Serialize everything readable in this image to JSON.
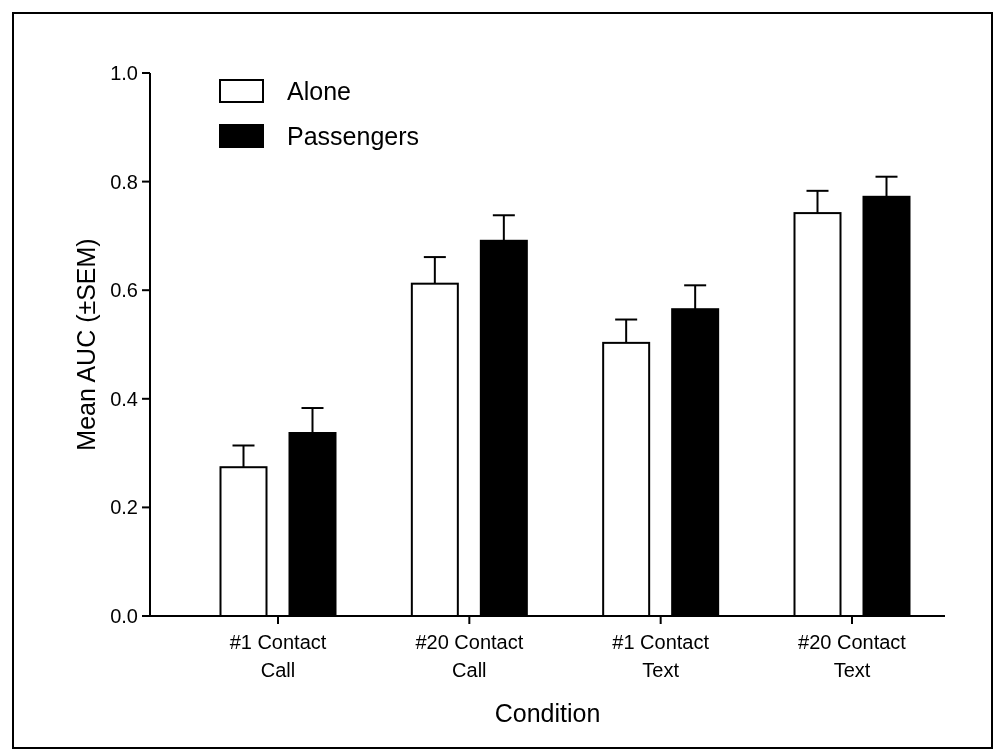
{
  "chart_data": {
    "type": "bar",
    "xlabel": "Condition",
    "ylabel": "Mean AUC (±SEM)",
    "categories": [
      "#1 Contact Call",
      "#20 Contact Call",
      "#1 Contact Text",
      "#20 Contact Text"
    ],
    "series": [
      {
        "name": "Alone",
        "color": "#ffffff",
        "values": [
          0.274,
          0.612,
          0.503,
          0.742
        ],
        "errors": [
          0.04,
          0.049,
          0.043,
          0.041
        ]
      },
      {
        "name": "Passengers",
        "color": "#000000",
        "values": [
          0.337,
          0.691,
          0.565,
          0.772
        ],
        "errors": [
          0.046,
          0.047,
          0.044,
          0.037
        ]
      }
    ],
    "ylim": [
      0,
      1
    ],
    "yticks": [
      {
        "value": 0,
        "label": "0.0"
      },
      {
        "value": 0.2,
        "label": "0.2"
      },
      {
        "value": 0.4,
        "label": "0.4"
      },
      {
        "value": 0.6,
        "label": "0.6"
      },
      {
        "value": 0.8,
        "label": "0.8"
      },
      {
        "value": 1,
        "label": "1.0"
      }
    ],
    "legend": "top left",
    "grid": false
  }
}
